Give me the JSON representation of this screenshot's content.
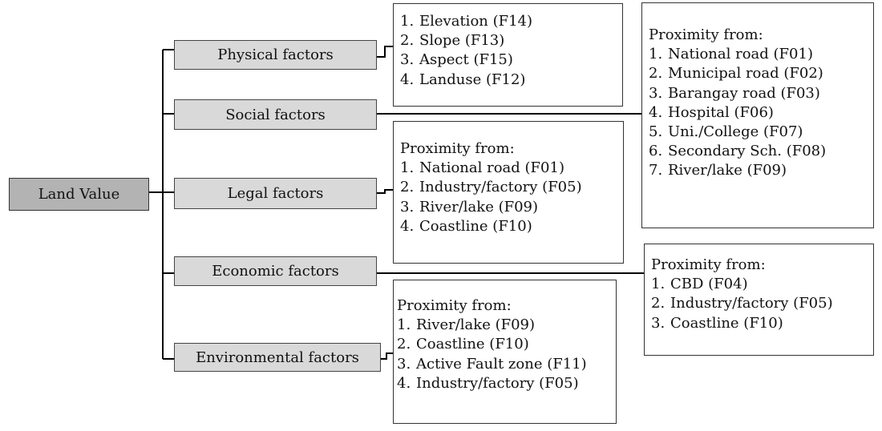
{
  "root": {
    "label": "Land Value"
  },
  "categories": [
    {
      "id": "physical",
      "label": "Physical factors"
    },
    {
      "id": "social",
      "label": "Social factors"
    },
    {
      "id": "legal",
      "label": "Legal factors"
    },
    {
      "id": "economic",
      "label": "Economic factors"
    },
    {
      "id": "environmental",
      "label": "Environmental factors"
    }
  ],
  "panels": {
    "physical": {
      "heading": "",
      "items": [
        "Elevation (F14)",
        "Slope (F13)",
        "Aspect (F15)",
        "Landuse (F12)"
      ]
    },
    "social": {
      "heading": "Proximity from:",
      "items": [
        "National road (F01)",
        "Municipal road (F02)",
        "Barangay road (F03)",
        "Hospital (F06)",
        "Uni./College (F07)",
        "Secondary Sch. (F08)",
        "River/lake (F09)"
      ]
    },
    "legal": {
      "heading": "Proximity from:",
      "items": [
        "National road (F01)",
        "Industry/factory  (F05)",
        "River/lake (F09)",
        "Coastline (F10)"
      ]
    },
    "economic": {
      "heading": "Proximity from:",
      "items": [
        "CBD (F04)",
        "Industry/factory  (F05)",
        "Coastline (F10)"
      ]
    },
    "environmental": {
      "heading": "Proximity from:",
      "items": [
        "River/lake (F09)",
        "Coastline (F10)",
        "Active Fault zone (F11)",
        "Industry/factory  (F05)"
      ]
    }
  }
}
